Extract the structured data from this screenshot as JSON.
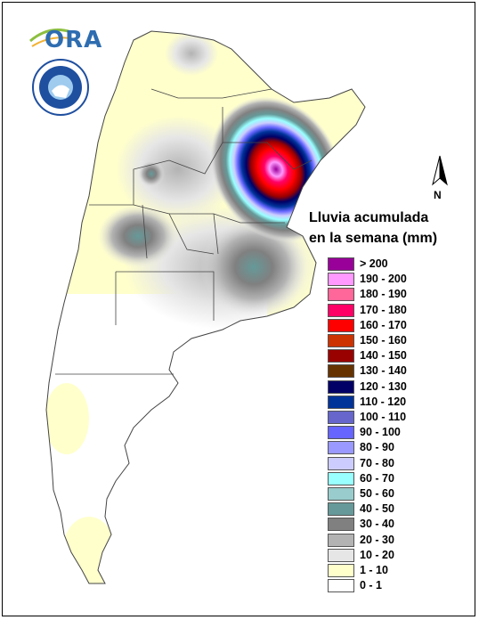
{
  "logo": {
    "text": "ORA",
    "seal_text": "SERVICIO METEOROLOGICO NACIONAL ARGENTINA"
  },
  "north_arrow": {
    "label": "N"
  },
  "legend": {
    "title_line1": "Lluvia acumulada",
    "title_line2": "en la semana (mm)",
    "items": [
      {
        "label": "> 200",
        "color": "#990099"
      },
      {
        "label": "190 - 200",
        "color": "#ff99ff"
      },
      {
        "label": "180 - 190",
        "color": "#ff6699"
      },
      {
        "label": "170 - 180",
        "color": "#ff0066"
      },
      {
        "label": "160 - 170",
        "color": "#ff0000"
      },
      {
        "label": "150 - 160",
        "color": "#cc3300"
      },
      {
        "label": "140 - 150",
        "color": "#990000"
      },
      {
        "label": "130 - 140",
        "color": "#663300"
      },
      {
        "label": "120 - 130",
        "color": "#000066"
      },
      {
        "label": "110 - 120",
        "color": "#003399"
      },
      {
        "label": "100 - 110",
        "color": "#6666cc"
      },
      {
        "label": "90 - 100",
        "color": "#6666ff"
      },
      {
        "label": "80 - 90",
        "color": "#9999ff"
      },
      {
        "label": "70 - 80",
        "color": "#ccccff"
      },
      {
        "label": "60 - 70",
        "color": "#99ffff"
      },
      {
        "label": "50 - 60",
        "color": "#99cccc"
      },
      {
        "label": "40 - 50",
        "color": "#669999"
      },
      {
        "label": "30 - 40",
        "color": "#808080"
      },
      {
        "label": "20 - 30",
        "color": "#b3b3b3"
      },
      {
        "label": "10 - 20",
        "color": "#e6e6e6"
      },
      {
        "label": "1 - 10",
        "color": "#ffffcc"
      },
      {
        "label": "0 - 1",
        "color": "#ffffff"
      }
    ]
  }
}
